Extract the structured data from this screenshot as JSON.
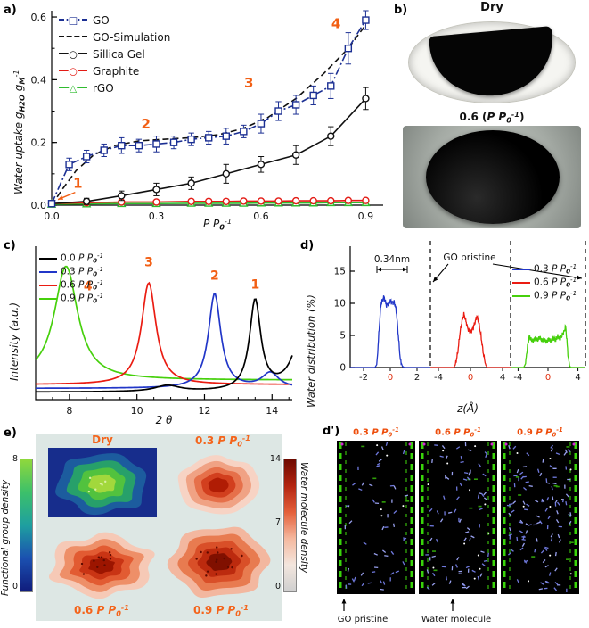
{
  "figure": {
    "accent": "#f25f14",
    "up_arrow": "↑"
  },
  "panel_tags": {
    "a": "a)",
    "b": "b)",
    "c": "c)",
    "d": "d)",
    "e": "e)",
    "d2": "d')"
  },
  "panel_b": {
    "title": "Dry",
    "caption_parts": [
      [
        "0.6 (",
        "b"
      ],
      [
        "P P",
        "bi"
      ],
      [
        "0",
        "bisub"
      ],
      [
        "-1",
        "bisup"
      ],
      [
        ")",
        "b"
      ]
    ]
  },
  "panel_d2": {
    "frames": [
      {
        "label_parts": [
          [
            "0.3 ",
            "b"
          ],
          [
            "P P",
            "bi"
          ],
          [
            "0",
            "bisub"
          ],
          [
            "-1",
            "bisup"
          ]
        ]
      },
      {
        "label_parts": [
          [
            "0.6 ",
            "b"
          ],
          [
            "P P",
            "bi"
          ],
          [
            "0",
            "bisub"
          ],
          [
            "-1",
            "bisup"
          ]
        ]
      },
      {
        "label_parts": [
          [
            "0.9 ",
            "b"
          ],
          [
            "P P",
            "bi"
          ],
          [
            "0",
            "bisub"
          ],
          [
            "-1",
            "bisup"
          ]
        ]
      }
    ],
    "annotations": [
      "GO pristine",
      "Water molecule"
    ],
    "colors": {
      "go_sheet": "#39d40a",
      "go_sheet_dim": "#2f9e08",
      "water": "#6f79dd",
      "water_light": "#98a0ee",
      "speck": "#ffffff",
      "corner": "#d428d4",
      "background": "#000000"
    },
    "label_color": "#ee4e0c"
  },
  "chart_data": [
    {
      "id": "water_uptake",
      "type": "line",
      "xlabel_parts": [
        [
          "P P",
          "i"
        ],
        [
          "0",
          "isub"
        ],
        [
          "-1",
          "isup"
        ]
      ],
      "ylabel_parts": [
        [
          "Water uptake g",
          "i"
        ],
        [
          "H2O",
          "isub"
        ],
        [
          " g",
          "i"
        ],
        [
          "M",
          "isub"
        ],
        [
          "-1",
          "isup"
        ]
      ],
      "xlim": [
        0,
        0.95
      ],
      "ylim": [
        0,
        0.62
      ],
      "xticks": [
        0.0,
        0.3,
        0.6,
        0.9
      ],
      "yticks": [
        0.0,
        0.2,
        0.4,
        0.6
      ],
      "annotation_color": "#f25f14",
      "series": [
        {
          "name": "GO",
          "color": "#1b2f93",
          "marker": "square",
          "linestyle": "dashdot",
          "x": [
            0,
            0.05,
            0.1,
            0.15,
            0.2,
            0.25,
            0.3,
            0.35,
            0.4,
            0.45,
            0.5,
            0.55,
            0.6,
            0.65,
            0.7,
            0.75,
            0.8,
            0.85,
            0.9
          ],
          "y": [
            0.005,
            0.13,
            0.155,
            0.175,
            0.19,
            0.19,
            0.195,
            0.2,
            0.21,
            0.215,
            0.22,
            0.235,
            0.26,
            0.3,
            0.32,
            0.35,
            0.38,
            0.5,
            0.59
          ],
          "yerr": [
            0.004,
            0.02,
            0.02,
            0.02,
            0.025,
            0.02,
            0.025,
            0.02,
            0.02,
            0.02,
            0.025,
            0.02,
            0.03,
            0.03,
            0.03,
            0.03,
            0.04,
            0.05,
            0.03
          ]
        },
        {
          "name": "GO-Simulation",
          "color": "#111111",
          "marker": "none",
          "linestyle": "dashed",
          "x": [
            0,
            0.03,
            0.07,
            0.12,
            0.18,
            0.25,
            0.32,
            0.4,
            0.48,
            0.55,
            0.62,
            0.7,
            0.78,
            0.85,
            0.9
          ],
          "y": [
            0,
            0.05,
            0.11,
            0.16,
            0.19,
            0.205,
            0.21,
            0.215,
            0.225,
            0.245,
            0.28,
            0.34,
            0.42,
            0.5,
            0.575
          ]
        },
        {
          "name": "Sillica Gel",
          "color": "#111111",
          "marker": "circle",
          "linestyle": "solid",
          "x": [
            0,
            0.1,
            0.2,
            0.3,
            0.4,
            0.5,
            0.6,
            0.7,
            0.8,
            0.9
          ],
          "y": [
            0.005,
            0.012,
            0.03,
            0.05,
            0.07,
            0.1,
            0.13,
            0.16,
            0.22,
            0.34
          ],
          "yerr": [
            0.004,
            0.01,
            0.015,
            0.02,
            0.02,
            0.03,
            0.025,
            0.03,
            0.03,
            0.035
          ]
        },
        {
          "name": "Graphite",
          "color": "#e31b15",
          "marker": "circle",
          "linestyle": "solid",
          "x": [
            0,
            0.1,
            0.2,
            0.3,
            0.4,
            0.45,
            0.5,
            0.55,
            0.6,
            0.65,
            0.7,
            0.75,
            0.8,
            0.85,
            0.9
          ],
          "y": [
            0.005,
            0.008,
            0.01,
            0.01,
            0.012,
            0.012,
            0.012,
            0.013,
            0.013,
            0.013,
            0.014,
            0.014,
            0.014,
            0.015,
            0.015
          ]
        },
        {
          "name": "rGO",
          "color": "#2fbc2f",
          "marker": "triangle",
          "linestyle": "solid",
          "x": [
            0,
            0.1,
            0.2,
            0.3,
            0.4,
            0.45,
            0.5,
            0.55,
            0.6,
            0.65,
            0.7,
            0.75,
            0.8,
            0.85,
            0.9
          ],
          "y": [
            0.003,
            0.004,
            0.005,
            0.005,
            0.006,
            0.006,
            0.006,
            0.006,
            0.007,
            0.007,
            0.007,
            0.007,
            0.008,
            0.008,
            0.008
          ]
        }
      ],
      "annotations": [
        {
          "text": "1",
          "x": 0.075,
          "y": 0.055,
          "arrow_to": [
            0.018,
            0.018
          ]
        },
        {
          "text": "2",
          "x": 0.27,
          "y": 0.245
        },
        {
          "text": "3",
          "x": 0.565,
          "y": 0.375
        },
        {
          "text": "4",
          "x": 0.815,
          "y": 0.565
        }
      ]
    },
    {
      "id": "xrd",
      "type": "line",
      "xlabel": "2 θ",
      "ylabel": "Intensity (a.u.)",
      "xlim": [
        7,
        14.6
      ],
      "xticks": [
        8,
        10,
        12,
        14
      ],
      "annotation_color": "#f25f14",
      "series": [
        {
          "label_parts": [
            [
              "0.0 "
            ],
            [
              "P P",
              "i"
            ],
            [
              "0",
              "isub"
            ],
            [
              "-1",
              "isup"
            ]
          ],
          "color": "#000000",
          "baseline": 0.05,
          "peaks": [
            {
              "center": 13.5,
              "height": 0.6,
              "width": 0.2
            },
            {
              "center": 14.95,
              "height": 0.45,
              "width": 0.35
            },
            {
              "center": 10.9,
              "height": 0.04,
              "width": 0.45
            }
          ]
        },
        {
          "label_parts": [
            [
              "0.3 "
            ],
            [
              "P P",
              "i"
            ],
            [
              "0",
              "isub"
            ],
            [
              "-1",
              "isup"
            ]
          ],
          "color": "#2136c8",
          "baseline": 0.075,
          "peaks": [
            {
              "center": 12.3,
              "height": 0.63,
              "width": 0.22
            },
            {
              "center": 13.95,
              "height": 0.1,
              "width": 0.3
            }
          ]
        },
        {
          "label_parts": [
            [
              "0.6 "
            ],
            [
              "P P",
              "i"
            ],
            [
              "0",
              "isub"
            ],
            [
              "-1",
              "isup"
            ]
          ],
          "color": "#ea1c12",
          "baseline": 0.1,
          "peaks": [
            {
              "center": 10.35,
              "height": 0.68,
              "width": 0.26
            }
          ]
        },
        {
          "label_parts": [
            [
              "0.9 "
            ],
            [
              "P P",
              "i"
            ],
            [
              "0",
              "isub"
            ],
            [
              "-1",
              "isup"
            ]
          ],
          "color": "#46d00c",
          "baseline": 0.13,
          "peaks": [
            {
              "center": 7.9,
              "height": 0.76,
              "width": 0.42
            }
          ]
        }
      ],
      "annotations": [
        {
          "text": "1",
          "x": 13.5,
          "yfrac": 0.74
        },
        {
          "text": "2",
          "x": 12.3,
          "yfrac": 0.8
        },
        {
          "text": "3",
          "x": 10.35,
          "yfrac": 0.89
        },
        {
          "text": "4",
          "x": 8.55,
          "yfrac": 0.73
        }
      ]
    },
    {
      "id": "water_distribution",
      "type": "line",
      "xlabel": "z(Å)",
      "ylabel": "Water distribution (%)",
      "yticks": [
        0,
        5,
        10,
        15
      ],
      "ylim": [
        0,
        17
      ],
      "zero_tick_color": "#e03010",
      "annotations": {
        "spacing": "0.34nm",
        "pristine": "GO pristine"
      },
      "subpanels": [
        {
          "label_parts": [
            [
              "0.3 "
            ],
            [
              "P P",
              "i"
            ],
            [
              "0",
              "isub"
            ],
            [
              "-1",
              "isup"
            ]
          ],
          "color": "#2136c8",
          "zlim": [
            -3,
            3
          ],
          "ticks": [
            -2,
            0,
            2
          ],
          "points": [
            [
              -3,
              0
            ],
            [
              -1.15,
              0
            ],
            [
              -1.0,
              0.5
            ],
            [
              -0.85,
              5.5
            ],
            [
              -0.7,
              9.8
            ],
            [
              -0.55,
              10.7
            ],
            [
              -0.45,
              10.9
            ],
            [
              -0.3,
              9.7
            ],
            [
              -0.15,
              9.9
            ],
            [
              0,
              10.4
            ],
            [
              0.15,
              10.1
            ],
            [
              0.3,
              10.2
            ],
            [
              0.45,
              8.8
            ],
            [
              0.6,
              5.0
            ],
            [
              0.75,
              1.2
            ],
            [
              0.9,
              0.2
            ],
            [
              1.05,
              0
            ],
            [
              3,
              0
            ]
          ]
        },
        {
          "label_parts": [
            [
              "0.6 "
            ],
            [
              "P P",
              "i"
            ],
            [
              "0",
              "isub"
            ],
            [
              "-1",
              "isup"
            ]
          ],
          "color": "#ea1c12",
          "zlim": [
            -5,
            5
          ],
          "ticks": [
            -4,
            0,
            4
          ],
          "points": [
            [
              -5,
              0
            ],
            [
              -2.1,
              0
            ],
            [
              -1.9,
              0.4
            ],
            [
              -1.6,
              2.2
            ],
            [
              -1.3,
              5.5
            ],
            [
              -1.0,
              7.6
            ],
            [
              -0.8,
              8.3
            ],
            [
              -0.6,
              7.4
            ],
            [
              -0.35,
              6.1
            ],
            [
              -0.1,
              5.6
            ],
            [
              0.1,
              5.7
            ],
            [
              0.35,
              6.2
            ],
            [
              0.6,
              7.2
            ],
            [
              0.8,
              8.0
            ],
            [
              1.0,
              7.2
            ],
            [
              1.3,
              5.0
            ],
            [
              1.6,
              2.2
            ],
            [
              1.9,
              0.4
            ],
            [
              2.1,
              0
            ],
            [
              5,
              0
            ]
          ]
        },
        {
          "label_parts": [
            [
              "0.9 "
            ],
            [
              "P P",
              "i"
            ],
            [
              "0",
              "isub"
            ],
            [
              "-1",
              "isup"
            ]
          ],
          "color": "#46d00c",
          "zlim": [
            -5,
            5
          ],
          "ticks": [
            -4,
            0,
            4
          ],
          "points": [
            [
              -5,
              0
            ],
            [
              -3.25,
              0
            ],
            [
              -3.0,
              0.6
            ],
            [
              -2.75,
              3.2
            ],
            [
              -2.5,
              4.9
            ],
            [
              -2.25,
              4.4
            ],
            [
              -2.0,
              4.1
            ],
            [
              -1.7,
              4.6
            ],
            [
              -1.4,
              4.2
            ],
            [
              -1.1,
              4.7
            ],
            [
              -0.8,
              4.1
            ],
            [
              -0.5,
              4.4
            ],
            [
              -0.2,
              4.0
            ],
            [
              0.1,
              4.5
            ],
            [
              0.4,
              4.1
            ],
            [
              0.7,
              4.6
            ],
            [
              1.0,
              4.3
            ],
            [
              1.3,
              4.8
            ],
            [
              1.6,
              4.4
            ],
            [
              1.9,
              5.0
            ],
            [
              2.15,
              5.6
            ],
            [
              2.35,
              6.4
            ],
            [
              2.5,
              4.5
            ],
            [
              2.7,
              1.5
            ],
            [
              2.9,
              0.2
            ],
            [
              3.1,
              0
            ],
            [
              5,
              0
            ]
          ]
        }
      ]
    },
    {
      "id": "density_maps",
      "type": "heatmap",
      "label_color": "#f4641b",
      "quadrants": [
        {
          "label": "Dry",
          "label_parts": [
            [
              "Dry",
              "b"
            ]
          ],
          "map": "functional_group",
          "bg": "#172d8c",
          "levels": [
            "#1c5c9e",
            "#27a06a",
            "#52c23e",
            "#a2d83c"
          ]
        },
        {
          "label": "0.3",
          "label_parts": [
            [
              "0.3 ",
              "b"
            ],
            [
              "P P",
              "bi"
            ],
            [
              "0",
              "bisub"
            ],
            [
              "-1",
              "bisup"
            ]
          ],
          "map": "water_molecule",
          "levels": [
            "#f7d3c4",
            "#f0a284",
            "#e6704a",
            "#d23f1e",
            "#b01c04"
          ]
        },
        {
          "label": "0.6",
          "label_parts": [
            [
              "0.6 ",
              "b"
            ],
            [
              "P P",
              "bi"
            ],
            [
              "0",
              "bisub"
            ],
            [
              "-1",
              "bisup"
            ]
          ],
          "map": "water_molecule",
          "levels": [
            "#f6c9b6",
            "#ee8f68",
            "#e25b32",
            "#c93414",
            "#9c1500"
          ]
        },
        {
          "label": "0.9",
          "label_parts": [
            [
              "0.9 ",
              "b"
            ],
            [
              "P P",
              "bi"
            ],
            [
              "0",
              "bisub"
            ],
            [
              "-1",
              "bisup"
            ]
          ],
          "map": "water_molecule",
          "levels": [
            "#f3b79f",
            "#e87b50",
            "#d94f28",
            "#bc2a0e",
            "#801000"
          ]
        }
      ],
      "colorbar_left": {
        "label": "Functional group density",
        "ticks": [
          "8",
          "0"
        ],
        "stops": [
          "#8fd83c",
          "#3cc06a",
          "#1e9fa0",
          "#1b50b0",
          "#101c7c"
        ]
      },
      "colorbar_right": {
        "label": "Water molecule density",
        "ticks": [
          "14",
          "7",
          "0"
        ],
        "stops": [
          "#6e0a00",
          "#b32410",
          "#e4603a",
          "#f5b89e",
          "#f3e6de",
          "#cfcfcf"
        ]
      }
    }
  ]
}
